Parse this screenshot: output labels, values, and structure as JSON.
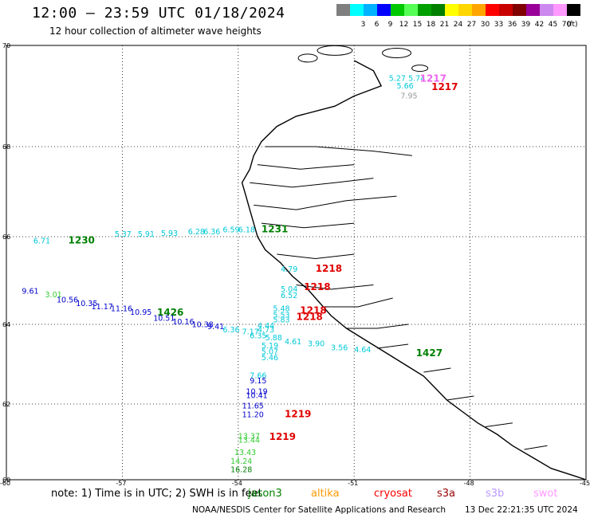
{
  "header": {
    "title": "12:00 – 23:59 UTC 01/18/2024",
    "subtitle": "12 hour collection of altimeter wave heights"
  },
  "colorbar": {
    "unit": "(ft)",
    "swatches": [
      {
        "color": "#7f7f7f",
        "label": ""
      },
      {
        "color": "#00ffff",
        "label": "3"
      },
      {
        "color": "#00b2ff",
        "label": "6"
      },
      {
        "color": "#0000ff",
        "label": "9"
      },
      {
        "color": "#00c800",
        "label": "12"
      },
      {
        "color": "#55ff55",
        "label": "15"
      },
      {
        "color": "#00a000",
        "label": "18"
      },
      {
        "color": "#007f00",
        "label": "21"
      },
      {
        "color": "#ffff00",
        "label": "24"
      },
      {
        "color": "#ffd700",
        "label": "27"
      },
      {
        "color": "#ffa500",
        "label": "30"
      },
      {
        "color": "#ff0000",
        "label": "33"
      },
      {
        "color": "#c80000",
        "label": "36"
      },
      {
        "color": "#800000",
        "label": "39"
      },
      {
        "color": "#990099",
        "label": "42"
      },
      {
        "color": "#cc88ee",
        "label": "45"
      },
      {
        "color": "#ff99ff",
        "label": "70"
      },
      {
        "color": "#000000",
        "label": ""
      }
    ]
  },
  "map": {
    "lat_labels": [
      "70",
      "68",
      "66",
      "64",
      "62",
      "60"
    ],
    "lon_labels": [
      "-60",
      "-57",
      "-54",
      "-51",
      "-48",
      "-45"
    ],
    "colors": {
      "cyan": "#00c8d8",
      "blue": "#0000cc",
      "green": "#008000",
      "lightgreen": "#33cc33",
      "red": "#e00000",
      "pink": "#ee66ee",
      "gray": "#999999"
    },
    "observations": [
      {
        "text": "5.27",
        "color": "cyan",
        "lon": -50.1,
        "lat": 69.3
      },
      {
        "text": "5.74",
        "color": "cyan",
        "lon": -49.6,
        "lat": 69.3
      },
      {
        "text": "5.66",
        "color": "cyan",
        "lon": -49.9,
        "lat": 69.15
      },
      {
        "text": "1217",
        "color": "pink",
        "lon": -49.3,
        "lat": 69.28,
        "time": true
      },
      {
        "text": "1217",
        "color": "red",
        "lon": -49.0,
        "lat": 69.12,
        "time": true
      },
      {
        "text": "7.95",
        "color": "gray",
        "lon": -49.8,
        "lat": 68.95
      },
      {
        "text": "6.71",
        "color": "cyan",
        "lon": -59.3,
        "lat": 65.85
      },
      {
        "text": "1230",
        "color": "green",
        "lon": -58.4,
        "lat": 65.85,
        "time": true
      },
      {
        "text": "5.37",
        "color": "cyan",
        "lon": -57.2,
        "lat": 66.0
      },
      {
        "text": "5.91",
        "color": "cyan",
        "lon": -56.6,
        "lat": 66.0
      },
      {
        "text": "5.93",
        "color": "cyan",
        "lon": -56.0,
        "lat": 66.02
      },
      {
        "text": "6.28",
        "color": "cyan",
        "lon": -55.3,
        "lat": 66.05
      },
      {
        "text": "6.36",
        "color": "cyan",
        "lon": -54.9,
        "lat": 66.05
      },
      {
        "text": "6.59",
        "color": "cyan",
        "lon": -54.4,
        "lat": 66.1
      },
      {
        "text": "6.18",
        "color": "cyan",
        "lon": -54.0,
        "lat": 66.1
      },
      {
        "text": "1231",
        "color": "green",
        "lon": -53.4,
        "lat": 66.1,
        "time": true
      },
      {
        "text": "4.79",
        "color": "cyan",
        "lon": -52.9,
        "lat": 65.2
      },
      {
        "text": "1218",
        "color": "red",
        "lon": -52.0,
        "lat": 65.2,
        "time": true
      },
      {
        "text": "5.04",
        "color": "cyan",
        "lon": -52.9,
        "lat": 64.75
      },
      {
        "text": "6.52",
        "color": "cyan",
        "lon": -52.9,
        "lat": 64.6
      },
      {
        "text": "1218",
        "color": "red",
        "lon": -52.3,
        "lat": 64.78,
        "time": true
      },
      {
        "text": "5.48",
        "color": "cyan",
        "lon": -53.1,
        "lat": 64.3
      },
      {
        "text": "5.53",
        "color": "cyan",
        "lon": -53.1,
        "lat": 64.15
      },
      {
        "text": "5.83",
        "color": "cyan",
        "lon": -53.1,
        "lat": 64.05
      },
      {
        "text": "1218",
        "color": "red",
        "lon": -52.4,
        "lat": 64.25,
        "time": true
      },
      {
        "text": "1218",
        "color": "red",
        "lon": -52.5,
        "lat": 64.1,
        "time": true
      },
      {
        "text": "9.61",
        "color": "blue",
        "lon": -59.6,
        "lat": 64.7
      },
      {
        "text": "3.01",
        "color": "lightgreen",
        "lon": -59.0,
        "lat": 64.62
      },
      {
        "text": "10.56",
        "color": "blue",
        "lon": -58.7,
        "lat": 64.5
      },
      {
        "text": "10.35",
        "color": "blue",
        "lon": -58.2,
        "lat": 64.42
      },
      {
        "text": "11.17",
        "color": "blue",
        "lon": -57.8,
        "lat": 64.35
      },
      {
        "text": "11.16",
        "color": "blue",
        "lon": -57.3,
        "lat": 64.3
      },
      {
        "text": "10.95",
        "color": "blue",
        "lon": -56.8,
        "lat": 64.22
      },
      {
        "text": "1426",
        "color": "green",
        "lon": -56.1,
        "lat": 64.2,
        "time": true
      },
      {
        "text": "10.51",
        "color": "blue",
        "lon": -56.2,
        "lat": 64.08
      },
      {
        "text": "10.16",
        "color": "blue",
        "lon": -55.7,
        "lat": 64.0
      },
      {
        "text": "10.38",
        "color": "blue",
        "lon": -55.2,
        "lat": 63.93
      },
      {
        "text": "9.41",
        "color": "blue",
        "lon": -54.8,
        "lat": 63.88
      },
      {
        "text": "6.36",
        "color": "cyan",
        "lon": -54.4,
        "lat": 63.8
      },
      {
        "text": "7.17",
        "color": "cyan",
        "lon": -53.9,
        "lat": 63.75
      },
      {
        "text": "4.44",
        "color": "cyan",
        "lon": -53.5,
        "lat": 63.9
      },
      {
        "text": "4.73",
        "color": "cyan",
        "lon": -53.5,
        "lat": 63.8
      },
      {
        "text": "6.35",
        "color": "cyan",
        "lon": -53.7,
        "lat": 63.65
      },
      {
        "text": "5.88",
        "color": "cyan",
        "lon": -53.3,
        "lat": 63.6
      },
      {
        "text": "4.61",
        "color": "cyan",
        "lon": -52.8,
        "lat": 63.5
      },
      {
        "text": "3.90",
        "color": "cyan",
        "lon": -52.2,
        "lat": 63.45
      },
      {
        "text": "3.56",
        "color": "cyan",
        "lon": -51.6,
        "lat": 63.35
      },
      {
        "text": "4.64",
        "color": "cyan",
        "lon": -51.0,
        "lat": 63.3
      },
      {
        "text": "5.19",
        "color": "cyan",
        "lon": -53.4,
        "lat": 63.4
      },
      {
        "text": "5.07",
        "color": "cyan",
        "lon": -53.4,
        "lat": 63.25
      },
      {
        "text": "5.46",
        "color": "cyan",
        "lon": -53.4,
        "lat": 63.1
      },
      {
        "text": "1427",
        "color": "green",
        "lon": -49.4,
        "lat": 63.2,
        "time": true
      },
      {
        "text": "7.66",
        "color": "cyan",
        "lon": -53.7,
        "lat": 62.65
      },
      {
        "text": "9.15",
        "color": "blue",
        "lon": -53.7,
        "lat": 62.52
      },
      {
        "text": "10.19",
        "color": "blue",
        "lon": -53.8,
        "lat": 62.25
      },
      {
        "text": "10.41",
        "color": "blue",
        "lon": -53.8,
        "lat": 62.15
      },
      {
        "text": "11.65",
        "color": "blue",
        "lon": -53.9,
        "lat": 61.88
      },
      {
        "text": "11.20",
        "color": "blue",
        "lon": -53.9,
        "lat": 61.65
      },
      {
        "text": "1219",
        "color": "red",
        "lon": -52.8,
        "lat": 61.65,
        "time": true
      },
      {
        "text": "13.37",
        "color": "lightgreen",
        "lon": -54.0,
        "lat": 61.08
      },
      {
        "text": "13.44",
        "color": "lightgreen",
        "lon": -54.0,
        "lat": 60.98
      },
      {
        "text": "1219",
        "color": "red",
        "lon": -53.2,
        "lat": 61.05,
        "time": true
      },
      {
        "text": "13.43",
        "color": "lightgreen",
        "lon": -54.1,
        "lat": 60.65
      },
      {
        "text": "14.24",
        "color": "lightgreen",
        "lon": -54.2,
        "lat": 60.42
      },
      {
        "text": "16.28",
        "color": "green",
        "lon": -54.2,
        "lat": 60.2
      }
    ]
  },
  "note": {
    "text": "note:  1) Time is in UTC; 2) SWH is in feet",
    "missions": [
      {
        "name": "jason3",
        "color": "#008000"
      },
      {
        "name": "altika",
        "color": "#ff9900"
      },
      {
        "name": "cryosat",
        "color": "#ff0000"
      },
      {
        "name": "s3a",
        "color": "#990000"
      },
      {
        "name": "s3b",
        "color": "#bb99ff"
      },
      {
        "name": "swot",
        "color": "#ff99ff"
      }
    ]
  },
  "footer": {
    "credit": "NOAA/NESDIS Center for Satellite Applications and Research",
    "timestamp": "13 Dec 22:21:35 UTC 2024"
  }
}
